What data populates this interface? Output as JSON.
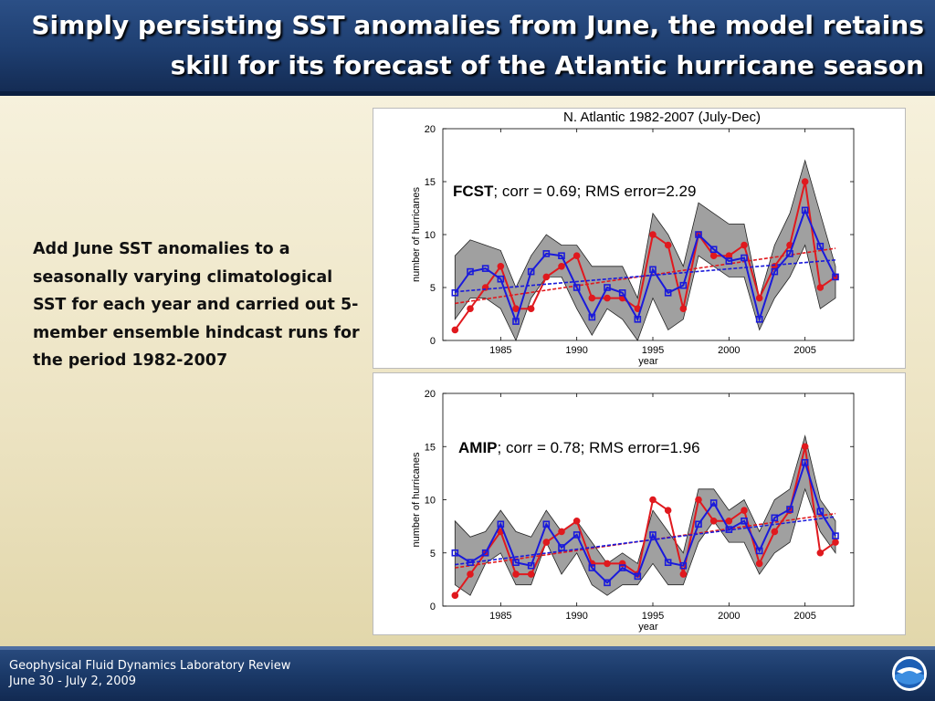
{
  "slide": {
    "title": "Simply persisting SST anomalies from June, the model retains skill for its forecast of the Atlantic hurricane season",
    "body_text": "Add June SST anomalies to a seasonally varying climatological SST for each year and carried out 5-member ensemble hindcast runs for the period 1982-2007",
    "footer_line1": "Geophysical Fluid Dynamics Laboratory Review",
    "footer_line2": "June 30 - July 2, 2009",
    "logo_icon": "noaa-logo-icon",
    "colors": {
      "header": "#1e3e70",
      "obs": "#e0191e",
      "model": "#1a1adb",
      "spread": "#9a9a9a"
    }
  },
  "chart_data": [
    {
      "type": "line",
      "title": "N. Atlantic 1982-2007 (July-Dec)",
      "annotation_bold": "FCST",
      "annotation_rest": "; corr = 0.69; RMS error=2.29",
      "xlabel": "year",
      "ylabel": "number of hurricanes",
      "xlim": [
        1981.2,
        2008.2
      ],
      "ylim": [
        0,
        20
      ],
      "xticks": [
        1985,
        1990,
        1995,
        2000,
        2005
      ],
      "yticks": [
        0,
        5,
        10,
        15,
        20
      ],
      "x": [
        1982,
        1983,
        1984,
        1985,
        1986,
        1987,
        1988,
        1989,
        1990,
        1991,
        1992,
        1993,
        1994,
        1995,
        1996,
        1997,
        1998,
        1999,
        2000,
        2001,
        2002,
        2003,
        2004,
        2005,
        2006,
        2007
      ],
      "series": [
        {
          "name": "",
          "role": "observed",
          "color": "#e0191e",
          "values": [
            1,
            3,
            5,
            7,
            3,
            3,
            6,
            7,
            8,
            4,
            4,
            4,
            3,
            10,
            9,
            3,
            10,
            8,
            8,
            9,
            4,
            7,
            9,
            15,
            5,
            6
          ],
          "trend": [
            3.5,
            8.7
          ]
        },
        {
          "name": "",
          "role": "model",
          "color": "#1a1adb",
          "values": [
            4.5,
            6.5,
            6.8,
            5.8,
            1.8,
            6.5,
            8.2,
            8.0,
            5.0,
            2.2,
            5.0,
            4.5,
            2.0,
            6.7,
            4.5,
            5.2,
            10.0,
            8.6,
            7.5,
            7.8,
            2.0,
            6.5,
            8.2,
            12.3,
            8.9,
            6.0
          ],
          "trend": [
            4.6,
            7.6
          ]
        },
        {
          "name": "",
          "role": "spread-upper",
          "values": [
            8,
            9.5,
            9,
            8.5,
            5,
            8,
            10,
            9,
            9,
            7,
            7,
            7,
            4,
            12,
            10,
            7,
            13,
            12,
            11,
            11,
            4,
            9,
            12,
            17,
            12,
            7
          ]
        },
        {
          "name": "",
          "role": "spread-lower",
          "values": [
            2,
            4,
            4,
            3,
            0,
            4,
            6,
            6,
            3,
            0.5,
            3,
            2,
            0,
            4,
            1,
            2,
            8,
            7,
            6,
            6,
            1,
            4,
            6,
            9,
            3,
            4
          ]
        }
      ]
    },
    {
      "type": "line",
      "title": "",
      "annotation_bold": "AMIP",
      "annotation_rest": "; corr = 0.78; RMS error=1.96",
      "xlabel": "year",
      "ylabel": "number of hurricanes",
      "xlim": [
        1981.2,
        2008.2
      ],
      "ylim": [
        0,
        20
      ],
      "xticks": [
        1985,
        1990,
        1995,
        2000,
        2005
      ],
      "yticks": [
        0,
        5,
        10,
        15,
        20
      ],
      "x": [
        1982,
        1983,
        1984,
        1985,
        1986,
        1987,
        1988,
        1989,
        1990,
        1991,
        1992,
        1993,
        1994,
        1995,
        1996,
        1997,
        1998,
        1999,
        2000,
        2001,
        2002,
        2003,
        2004,
        2005,
        2006,
        2007
      ],
      "series": [
        {
          "name": "",
          "role": "observed",
          "color": "#e0191e",
          "values": [
            1,
            3,
            5,
            7,
            3,
            3,
            6,
            7,
            8,
            4,
            4,
            4,
            3,
            10,
            9,
            3,
            10,
            8,
            8,
            9,
            4,
            7,
            9,
            15,
            5,
            6
          ],
          "trend": [
            3.6,
            8.7
          ]
        },
        {
          "name": "",
          "role": "model",
          "color": "#1a1adb",
          "values": [
            5.0,
            4.1,
            5.0,
            7.7,
            4.1,
            3.8,
            7.7,
            5.5,
            6.7,
            3.6,
            2.2,
            3.6,
            2.8,
            6.7,
            4.1,
            3.8,
            7.7,
            9.7,
            7.2,
            8.0,
            5.2,
            8.3,
            9.1,
            13.5,
            8.9,
            6.6
          ],
          "trend": [
            3.9,
            8.4
          ]
        },
        {
          "name": "",
          "role": "spread-upper",
          "values": [
            8,
            6.5,
            7,
            9,
            7,
            6.5,
            9,
            7,
            8,
            6,
            4,
            5,
            4,
            9,
            7,
            5,
            11,
            11,
            9,
            10,
            7,
            10,
            11,
            16,
            10,
            8
          ]
        },
        {
          "name": "",
          "role": "spread-lower",
          "values": [
            2,
            1,
            4,
            5,
            2,
            2,
            6,
            3,
            5,
            2,
            1,
            2,
            2,
            4,
            2,
            2,
            6,
            8,
            6,
            6,
            3,
            5,
            6,
            11,
            7,
            5
          ]
        }
      ]
    }
  ]
}
